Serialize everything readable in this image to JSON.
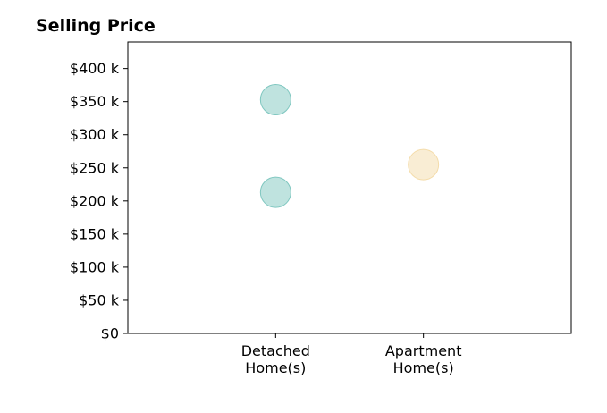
{
  "chart_data": {
    "type": "scatter",
    "title": "Selling Price",
    "xlabel": "",
    "ylabel": "",
    "categories": [
      [
        "Detached",
        "Home(s)"
      ],
      [
        "Apartment",
        "Home(s)"
      ]
    ],
    "xlim": [
      0,
      3
    ],
    "ylim": [
      0,
      440000
    ],
    "yticks": [
      0,
      50000,
      100000,
      150000,
      200000,
      250000,
      300000,
      350000,
      400000
    ],
    "ytick_labels": [
      "$0",
      "$50 k",
      "$100 k",
      "$150 k",
      "$200 k",
      "$250 k",
      "$300 k",
      "$350 k",
      "$400 k"
    ],
    "grid": false,
    "points": [
      {
        "category": 0,
        "y": 213000,
        "color": "#7fc7c0"
      },
      {
        "category": 0,
        "y": 353000,
        "color": "#7fc7c0"
      },
      {
        "category": 1,
        "y": 255000,
        "color": "#f4dcaa"
      }
    ]
  }
}
